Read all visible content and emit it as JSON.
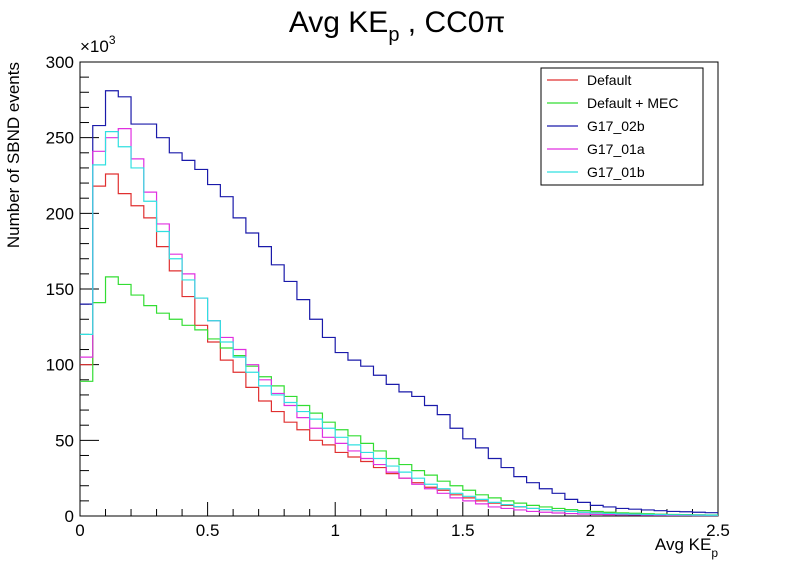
{
  "chart_data": {
    "type": "line",
    "step": true,
    "title": {
      "main": "Avg KE",
      "sub": "p",
      "suffix": " , CC0π"
    },
    "xlabel": {
      "main": "Avg KE",
      "sub": "p"
    },
    "ylabel": "Number of SBND events",
    "y_multiplier": {
      "base": "×10",
      "exp": "3"
    },
    "xlim": [
      0,
      2.5
    ],
    "ylim": [
      0,
      300
    ],
    "x_ticks": [
      0,
      0.5,
      1,
      1.5,
      2,
      2.5
    ],
    "x_tick_labels": [
      "0",
      "0.5",
      "1",
      "1.5",
      "2",
      "2.5"
    ],
    "y_ticks": [
      0,
      50,
      100,
      150,
      200,
      250,
      300
    ],
    "y_tick_labels": [
      "0",
      "50",
      "100",
      "150",
      "200",
      "250",
      "300"
    ],
    "grid": false,
    "legend_position": "top-right",
    "bin_edges": [
      0,
      0.05,
      0.1,
      0.15,
      0.2,
      0.25,
      0.3,
      0.35,
      0.4,
      0.45,
      0.5,
      0.55,
      0.6,
      0.65,
      0.7,
      0.75,
      0.8,
      0.85,
      0.9,
      0.95,
      1.0,
      1.05,
      1.1,
      1.15,
      1.2,
      1.25,
      1.3,
      1.35,
      1.4,
      1.45,
      1.5,
      1.55,
      1.6,
      1.65,
      1.7,
      1.75,
      1.8,
      1.85,
      1.9,
      1.95,
      2.0,
      2.05,
      2.1,
      2.15,
      2.2,
      2.25,
      2.3,
      2.35,
      2.4,
      2.45,
      2.5
    ],
    "series": [
      {
        "name": "Default",
        "color": "#e03030",
        "values": [
          100,
          218,
          226,
          213,
          205,
          197,
          178,
          162,
          145,
          126,
          115,
          103,
          95,
          85,
          76,
          69,
          62,
          57,
          50,
          47,
          42,
          39,
          36,
          32,
          28,
          25,
          22,
          19,
          17,
          14,
          12,
          10,
          8.5,
          7,
          6,
          5,
          4.2,
          3.5,
          3,
          2.6,
          2.2,
          1.9,
          1.6,
          1.4,
          1.2,
          1,
          0.9,
          0.8,
          0.7,
          0.6
        ]
      },
      {
        "name": "Default + MEC",
        "color": "#33dd33",
        "values": [
          89,
          141,
          158,
          153,
          146,
          139,
          134,
          130,
          126,
          123,
          117,
          111,
          106,
          99,
          92,
          86,
          79,
          73,
          68,
          62,
          57,
          53,
          48,
          43,
          38,
          34,
          30,
          27,
          23,
          20,
          17,
          14,
          12,
          10,
          8.5,
          7,
          6,
          5,
          4.2,
          3.6,
          3,
          2.5,
          2.1,
          1.8,
          1.5,
          1.2,
          1,
          0.9,
          0.8,
          0.7
        ]
      },
      {
        "name": "G17_02b",
        "color": "#1a1aaa",
        "values": [
          140,
          258,
          281,
          277,
          259,
          259,
          250,
          240,
          235,
          229,
          219,
          211,
          197,
          187,
          178,
          166,
          155,
          143,
          130,
          118,
          108,
          103,
          99,
          93,
          87,
          82,
          79,
          73,
          67,
          58,
          51,
          45,
          38,
          32,
          26,
          22,
          18,
          15,
          11,
          9,
          7,
          6,
          5,
          4.5,
          4,
          3.5,
          3,
          2.8,
          2.5,
          2.2
        ]
      },
      {
        "name": "G17_01a",
        "color": "#e030e0",
        "values": [
          105,
          241,
          250,
          256,
          236,
          214,
          193,
          173,
          160,
          144,
          129,
          118,
          110,
          100,
          90,
          81,
          73,
          65,
          58,
          52,
          48,
          43,
          38,
          34,
          29,
          25,
          21,
          18,
          15,
          12,
          10,
          8,
          6,
          5,
          4,
          3,
          2.5,
          2,
          1.6,
          1.3,
          1.1,
          0.9,
          0.8,
          0.7,
          0.6,
          0.5,
          0.4,
          0.4,
          0.3,
          0.3
        ]
      },
      {
        "name": "G17_01b",
        "color": "#30e0e0",
        "values": [
          120,
          232,
          254,
          244,
          230,
          208,
          188,
          170,
          156,
          144,
          129,
          115,
          105,
          95,
          86,
          80,
          75,
          69,
          64,
          58,
          52,
          47,
          42,
          38,
          33,
          29,
          25,
          21,
          18,
          15,
          13,
          11,
          9,
          7.5,
          6.2,
          5,
          4.2,
          3.5,
          3,
          2.5,
          2,
          1.7,
          1.4,
          1.2,
          1,
          0.9,
          0.8,
          0.7,
          0.6,
          0.5
        ]
      }
    ]
  }
}
